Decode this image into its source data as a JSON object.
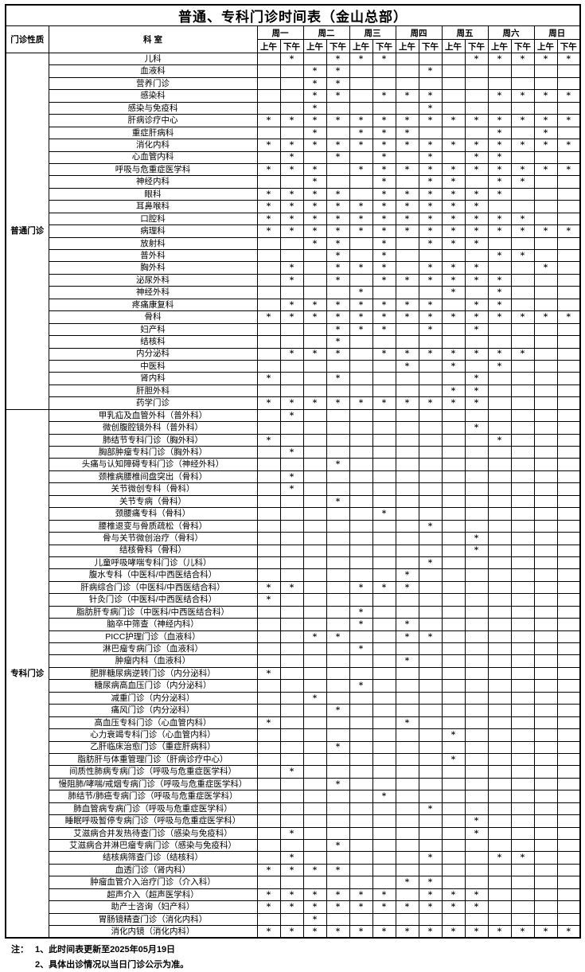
{
  "title": "普通、专科门诊时间表（金山总部）",
  "mark": "*",
  "colors": {
    "border": "#000000",
    "background": "#ffffff",
    "text": "#000000"
  },
  "header": {
    "col_type": "门诊性质",
    "col_dept": "科 室",
    "days": [
      "周一",
      "周二",
      "周三",
      "周四",
      "周五",
      "周六",
      "周日"
    ],
    "am": "上午",
    "pm": "下午"
  },
  "sections": [
    {
      "label": "普通门诊",
      "rows": [
        {
          "name": "儿科",
          "s": "01011100011111"
        },
        {
          "name": "血液科",
          "s": "00110001000000"
        },
        {
          "name": "营养门诊",
          "s": "00110000000000"
        },
        {
          "name": "感染科",
          "s": "00110111001111"
        },
        {
          "name": "感染与免疫科",
          "s": "00100001000000"
        },
        {
          "name": "肝病诊疗中心",
          "s": "11111111111111"
        },
        {
          "name": "重症肝病科",
          "s": "00101110001010"
        },
        {
          "name": "消化内科",
          "s": "11111111111111"
        },
        {
          "name": "心血管内科",
          "s": "01010101011000"
        },
        {
          "name": "呼吸与危重症医学科",
          "s": "11101111111111"
        },
        {
          "name": "神经内科",
          "s": "00100101101100"
        },
        {
          "name": "眼科",
          "s": "11110111111000"
        },
        {
          "name": "耳鼻喉科",
          "s": "11111111110000"
        },
        {
          "name": "口腔科",
          "s": "11111111111100"
        },
        {
          "name": "病理科",
          "s": "11111111111111"
        },
        {
          "name": "放射科",
          "s": "00110101110000"
        },
        {
          "name": "普外科",
          "s": "00010100001100"
        },
        {
          "name": "胸外科",
          "s": "01011101110010"
        },
        {
          "name": "泌尿外科",
          "s": "01010111111000"
        },
        {
          "name": "神经外科",
          "s": "00001000101000"
        },
        {
          "name": "疼痛康复科",
          "s": "01111111011000"
        },
        {
          "name": "骨科",
          "s": "11111111111111"
        },
        {
          "name": "妇产科",
          "s": "00011101010000"
        },
        {
          "name": "结核科",
          "s": "00010000000000"
        },
        {
          "name": "内分泌科",
          "s": "01110111111100"
        },
        {
          "name": "中医科",
          "s": "00000010101000"
        },
        {
          "name": "肾内科",
          "s": "10010000010000"
        },
        {
          "name": "肝胆外科",
          "s": "00000000110000"
        },
        {
          "name": "药学门诊",
          "s": "11111111110000"
        }
      ]
    },
    {
      "label": "专科门诊",
      "rows": [
        {
          "name": "甲乳疝及血管外科（普外科）",
          "s": "01000000000000"
        },
        {
          "name": "微创腹腔镜外科（普外科）",
          "s": "00000000010000"
        },
        {
          "name": "肺结节专科门诊（胸外科）",
          "s": "10000000001000"
        },
        {
          "name": "胸部肿瘤专科门诊（胸外科）",
          "s": "01000000000000"
        },
        {
          "name": "头痛与认知障碍专科门诊（神经外科）",
          "s": "00010000000000"
        },
        {
          "name": "颈椎病腰椎间盘突出（骨科）",
          "s": "01000000000000"
        },
        {
          "name": "关节微创专科（骨科）",
          "s": "01000000000000"
        },
        {
          "name": "关节专病（骨科）",
          "s": "00010000000000"
        },
        {
          "name": "颈腰痛专科（骨科）",
          "s": "00000100000000"
        },
        {
          "name": "腰椎退变与骨质疏松（骨科）",
          "s": "00000001000000"
        },
        {
          "name": "骨与关节微创治疗（骨科）",
          "s": "00000000010000"
        },
        {
          "name": "结核骨科（骨科）",
          "s": "00000000010000"
        },
        {
          "name": "儿童呼吸哮喘专科门诊（儿科）",
          "s": "00000001000000"
        },
        {
          "name": "腹水专科（中医科/中西医结合科）",
          "s": "00000010000000"
        },
        {
          "name": "肝病综合门诊（中医科/中西医结合科）",
          "s": "11001110000000"
        },
        {
          "name": "针灸门诊（中医科/中西医结合科）",
          "s": "10000000000000"
        },
        {
          "name": "脂肪肝专病门诊（中医科/中西医结合科）",
          "s": "00001000000000"
        },
        {
          "name": "脑卒中筛查（神经内科）",
          "s": "00001010000000"
        },
        {
          "name": "PICC护理门诊（血液科）",
          "s": "00110011000000"
        },
        {
          "name": "淋巴瘤专病门诊（血液科）",
          "s": "00001000000000"
        },
        {
          "name": "肿瘤内科（血液科）",
          "s": "00000010000000"
        },
        {
          "name": "肥胖糖尿病逆转门诊（内分泌科）",
          "s": "10000000000000"
        },
        {
          "name": "糖尿病高血压门诊（内分泌科）",
          "s": "00001000000000"
        },
        {
          "name": "减重门诊（内分泌科）",
          "s": "00100000000000"
        },
        {
          "name": "痛风门诊（内分泌科）",
          "s": "00010000000000"
        },
        {
          "name": "高血压专科门诊（心血管内科）",
          "s": "10000010000000"
        },
        {
          "name": "心力衰竭专科门诊（心血管内科）",
          "s": "00000000100000"
        },
        {
          "name": "乙肝临床治愈门诊（重症肝病科）",
          "s": "00010000000000"
        },
        {
          "name": "脂肪肝与体重管理门诊（肝病诊疗中心）",
          "s": "00000000100000"
        },
        {
          "name": "间质性肺病专病门诊（呼吸与危重症医学科）",
          "s": "01000000000000"
        },
        {
          "name": "慢阻肺/哮喘/戒烟专病门诊（呼吸与危重症医学科）",
          "s": "00010000000000"
        },
        {
          "name": "肺结节/肺癌专病门诊（呼吸与危重症医学科）",
          "s": "00000100000000"
        },
        {
          "name": "肺血管病专病门诊（呼吸与危重症医学科）",
          "s": "00000001000000"
        },
        {
          "name": "睡眠呼吸暂停专病门诊（呼吸与危重症医学科）",
          "s": "00000000010000"
        },
        {
          "name": "艾滋病合并发热待查门诊（感染与免疫科）",
          "s": "01000000010000"
        },
        {
          "name": "艾滋病合并淋巴瘤专病门诊（感染与免疫科）",
          "s": "00010000000000"
        },
        {
          "name": "结核病筛查门诊（结核科）",
          "s": "01000001001100"
        },
        {
          "name": "血透门诊（肾内科）",
          "s": "11110000000000"
        },
        {
          "name": "肿瘤血管介入治疗门诊（介入科）",
          "s": "00000011000000"
        },
        {
          "name": "超声介入（超声医学科）",
          "s": "11111101110000"
        },
        {
          "name": "助产士咨询（妇产科）",
          "s": "11111111110000"
        },
        {
          "name": "胃肠镜精查门诊（消化内科）",
          "s": "00100000000000"
        },
        {
          "name": "消化内镜（消化内科）",
          "s": "11111111111111"
        }
      ]
    }
  ],
  "notes": {
    "prefix": "注：",
    "items": [
      "1、此时间表更新至2025年05月19日",
      "2、具体出诊情况以当日门诊公示为准。"
    ]
  }
}
